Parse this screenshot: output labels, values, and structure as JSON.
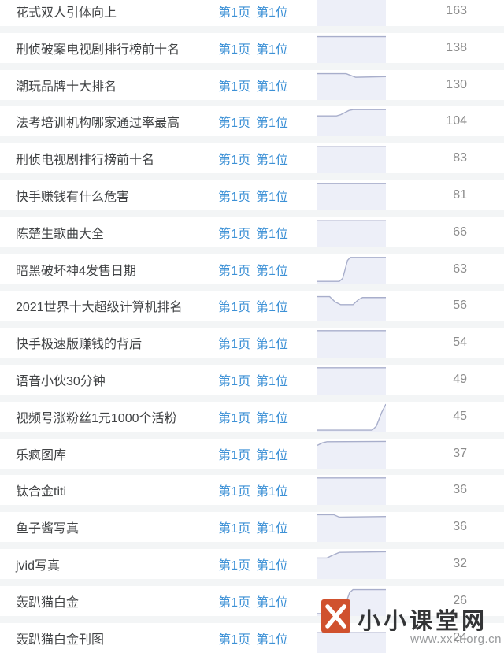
{
  "table": {
    "link_page_label": "第1页",
    "link_pos_label": "第1位",
    "rows": [
      {
        "keyword": "花式双人引体向上",
        "count": "163",
        "spark": [
          [
            0,
            6
          ],
          [
            100,
            6
          ]
        ]
      },
      {
        "keyword": "刑侦破案电视剧排行榜前十名",
        "count": "138",
        "spark": [
          [
            0,
            12
          ],
          [
            100,
            12
          ]
        ]
      },
      {
        "keyword": "潮玩品牌十大排名",
        "count": "130",
        "spark": [
          [
            0,
            12
          ],
          [
            42,
            12
          ],
          [
            56,
            24
          ],
          [
            100,
            22
          ]
        ]
      },
      {
        "keyword": "法考培训机构哪家通过率最高",
        "count": "104",
        "spark": [
          [
            0,
            32
          ],
          [
            28,
            32
          ],
          [
            34,
            28
          ],
          [
            46,
            14
          ],
          [
            52,
            11
          ],
          [
            100,
            11
          ]
        ]
      },
      {
        "keyword": "刑侦电视剧排行榜前十名",
        "count": "83",
        "spark": [
          [
            0,
            11
          ],
          [
            100,
            11
          ]
        ]
      },
      {
        "keyword": "快手赚钱有什么危害",
        "count": "81",
        "spark": [
          [
            0,
            10
          ],
          [
            100,
            10
          ]
        ]
      },
      {
        "keyword": "陈楚生歌曲大全",
        "count": "66",
        "spark": [
          [
            0,
            11
          ],
          [
            100,
            11
          ]
        ]
      },
      {
        "keyword": "暗黑破坏神4发售日期",
        "count": "63",
        "spark": [
          [
            0,
            90
          ],
          [
            32,
            90
          ],
          [
            37,
            80
          ],
          [
            44,
            20
          ],
          [
            48,
            10
          ],
          [
            100,
            10
          ]
        ]
      },
      {
        "keyword": "2021世界十大超级计算机排名",
        "count": "56",
        "spark": [
          [
            0,
            20
          ],
          [
            18,
            20
          ],
          [
            26,
            38
          ],
          [
            34,
            47
          ],
          [
            52,
            47
          ],
          [
            60,
            30
          ],
          [
            66,
            23
          ],
          [
            100,
            23
          ]
        ]
      },
      {
        "keyword": "快手极速版赚钱的背后",
        "count": "54",
        "spark": [
          [
            0,
            10
          ],
          [
            100,
            10
          ]
        ]
      },
      {
        "keyword": "语音小伙30分钟",
        "count": "49",
        "spark": [
          [
            0,
            10
          ],
          [
            100,
            10
          ]
        ]
      },
      {
        "keyword": "视频号涨粉丝1元1000个活粉",
        "count": "45",
        "spark": [
          [
            0,
            95
          ],
          [
            80,
            95
          ],
          [
            86,
            82
          ],
          [
            94,
            35
          ],
          [
            100,
            8
          ]
        ]
      },
      {
        "keyword": "乐疯图库",
        "count": "37",
        "spark": [
          [
            0,
            22
          ],
          [
            7,
            14
          ],
          [
            14,
            10
          ],
          [
            100,
            9
          ]
        ]
      },
      {
        "keyword": "钛合金titi",
        "count": "36",
        "spark": [
          [
            0,
            10
          ],
          [
            100,
            10
          ]
        ]
      },
      {
        "keyword": "鱼子酱写真",
        "count": "36",
        "spark": [
          [
            0,
            9
          ],
          [
            24,
            9
          ],
          [
            32,
            17
          ],
          [
            100,
            15
          ]
        ]
      },
      {
        "keyword": "jvid写真",
        "count": "32",
        "spark": [
          [
            0,
            30
          ],
          [
            14,
            30
          ],
          [
            21,
            22
          ],
          [
            32,
            11
          ],
          [
            100,
            9
          ]
        ]
      },
      {
        "keyword": "轰趴猫白金",
        "count": "26",
        "spark": [
          [
            0,
            92
          ],
          [
            32,
            92
          ],
          [
            38,
            82
          ],
          [
            47,
            22
          ],
          [
            52,
            12
          ],
          [
            100,
            12
          ]
        ]
      },
      {
        "keyword": "轰趴猫白金刊图",
        "count": "24",
        "spark": [
          [
            0,
            32
          ],
          [
            100,
            32
          ]
        ]
      }
    ]
  },
  "watermark": {
    "site_name": "小小课堂网",
    "site_url": "www.xxkt.org.cn",
    "logo_glyph": "X"
  },
  "colors": {
    "link_blue": "#3d91d6",
    "keyword_text": "#414345",
    "count_text": "#8c8c8c",
    "row_background": "#ffffff",
    "gap_background": "#f3f5f6",
    "spark_fill": "#edeff8",
    "spark_line": "#a8aecb",
    "logo_red": "#d0512e",
    "watermark_text": "#333436",
    "watermark_url": "#97999b"
  }
}
